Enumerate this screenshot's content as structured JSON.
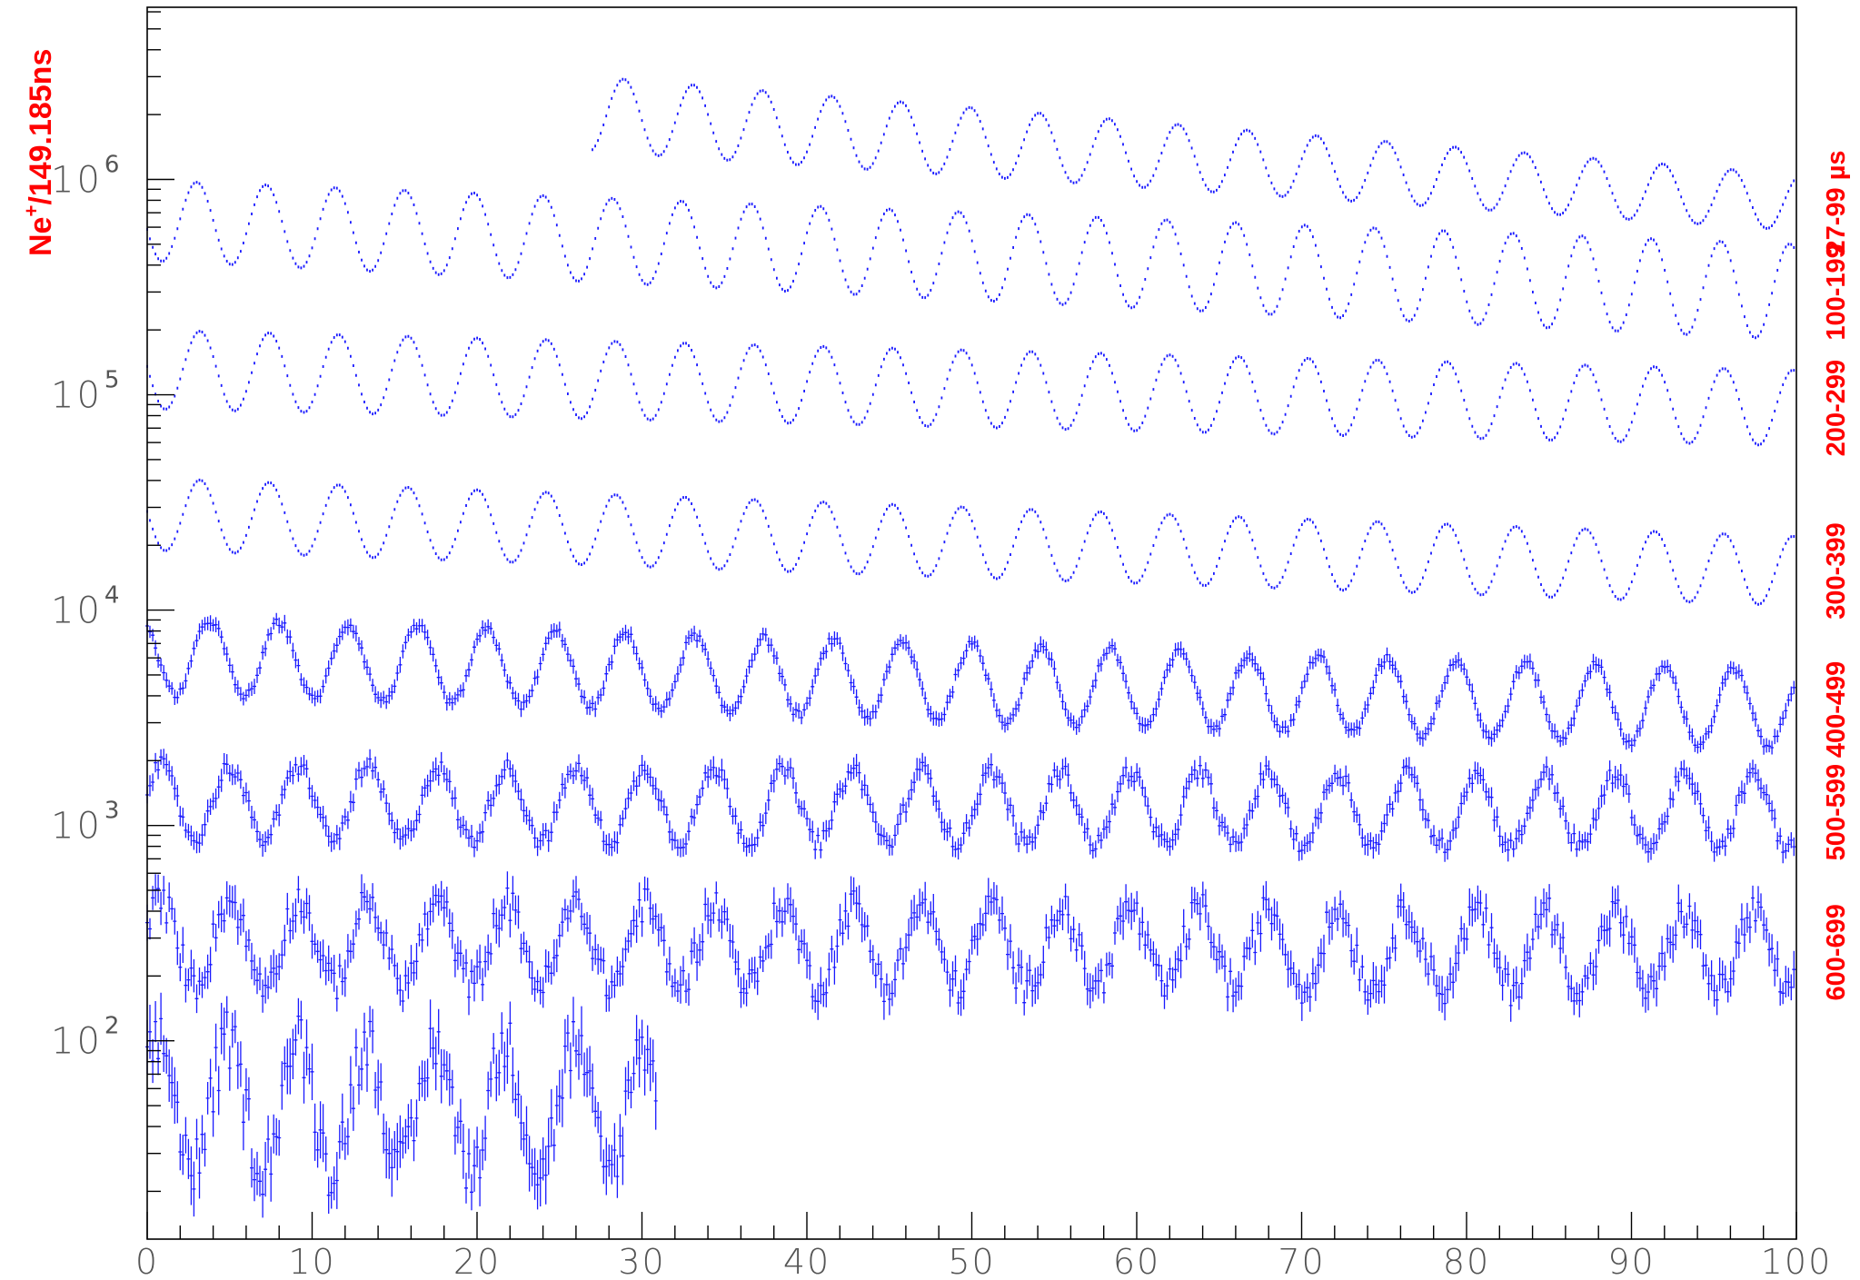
{
  "chart_data": {
    "type": "scatter",
    "title": "",
    "ylabel": "Ne⁺/149.185ns",
    "ylabel_parts": {
      "base": "Ne",
      "sup": "+",
      "rest": "/149.185ns"
    },
    "xlabel": "",
    "xlim": [
      0,
      100
    ],
    "ylim": [
      12,
      6300000
    ],
    "y_scale": "log",
    "x_ticks": [
      0,
      10,
      20,
      30,
      40,
      50,
      60,
      70,
      80,
      90,
      100
    ],
    "x_tick_labels": [
      "0",
      "10",
      "20",
      "30",
      "40",
      "50",
      "60",
      "70",
      "80",
      "90",
      "100"
    ],
    "y_ticks": [
      {
        "value": 100,
        "base": "10",
        "exp": "2"
      },
      {
        "value": 1000,
        "base": "10",
        "exp": "3"
      },
      {
        "value": 10000,
        "base": "10",
        "exp": "4"
      },
      {
        "value": 100000,
        "base": "10",
        "exp": "5"
      },
      {
        "value": 1000000,
        "base": "10",
        "exp": "6"
      }
    ],
    "grid": false,
    "marker_color": "#1a1aff",
    "label_color": "#ff0000",
    "period": 4.2,
    "series": [
      {
        "label": "27-99 µs",
        "x_start": 27,
        "x_end": 100,
        "peak": 3000000,
        "peak_end": 1050000,
        "trough": 1350000,
        "trough_end": 580000,
        "phase": 28.9,
        "noise": 0.0
      },
      {
        "label": "100-199",
        "x_start": 0,
        "x_end": 100,
        "peak": 990000,
        "peak_end": 500000,
        "trough": 420000,
        "trough_end": 180000,
        "phase": 3.0,
        "noise": 0.0
      },
      {
        "label": "200-299",
        "x_start": 0,
        "x_end": 100,
        "peak": 200000,
        "peak_end": 130000,
        "trough": 86000,
        "trough_end": 58000,
        "phase": 3.2,
        "noise": 0.0
      },
      {
        "label": "300-399",
        "x_start": 0,
        "x_end": 100,
        "peak": 41000,
        "peak_end": 22000,
        "trough": 19000,
        "trough_end": 10500,
        "phase": 3.2,
        "noise": 0.0
      },
      {
        "label": "400-499",
        "x_start": 0,
        "x_end": 100,
        "peak": 9200,
        "peak_end": 5200,
        "trough": 4100,
        "trough_end": 2300,
        "phase": 3.8,
        "noise": 0.02
      },
      {
        "label": "500-599",
        "x_start": 0,
        "x_end": 100,
        "peak": 1900,
        "peak_end": 1700,
        "trough": 870,
        "trough_end": 780,
        "phase": 5.0,
        "noise": 0.04
      },
      {
        "label": "600-699",
        "x_start": 0,
        "x_end": 100,
        "peak": 450,
        "peak_end": 390,
        "trough": 185,
        "trough_end": 170,
        "phase": 5.0,
        "noise": 0.08
      },
      {
        "label": "",
        "x_start": 0,
        "x_end": 31,
        "peak": 100,
        "peak_end": 88,
        "trough": 26,
        "trough_end": 22,
        "phase": 4.9,
        "noise": 0.14
      }
    ]
  }
}
